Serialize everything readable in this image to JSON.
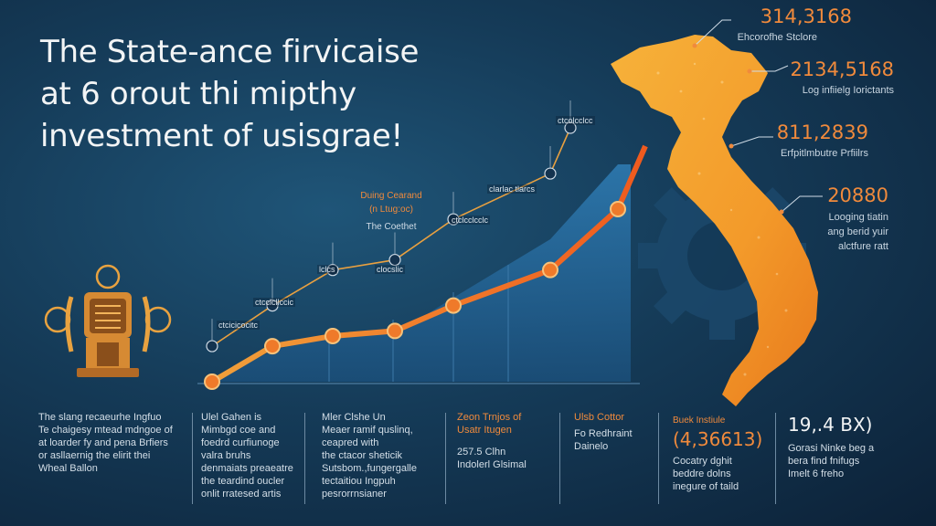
{
  "title": {
    "line1": "The State-ance firvicaise",
    "line2": "at 6 orout thi mipthy",
    "line3": "investment of usisgrae!"
  },
  "stats": [
    {
      "value": "314,3168",
      "label": "Ehcorofhe Stclore"
    },
    {
      "value": "2134,5168",
      "label": "Log infiielg Iorictants"
    },
    {
      "value": "811,2839",
      "label": "Erfpitlmbutre Prfiilrs"
    },
    {
      "value": "20880",
      "label1": "Looging tiatin",
      "label2": "ang berid yuir",
      "label3": "alctfure ratt"
    }
  ],
  "callout": {
    "line1": "Duing Cearand",
    "line2": "(n Ltug:oc)",
    "line3": "The Coethet"
  },
  "chart_annotations": [
    "ctcolcclcc",
    "clarlac tlarcs",
    "ctclcclcclc",
    "lclcs",
    "clocslic",
    "ctcclcllccic",
    "ctcicicocitc"
  ],
  "columns": [
    {
      "lines": [
        "The slang recaeurhe Ingfuo",
        "Te chaigesy mtead mdngoe of",
        "at loarder fy and pena Brfiers",
        "or asllaernig the elirit thei",
        "Wheal Ballon"
      ]
    },
    {
      "lines": [
        "Ulel Gahen is",
        "Mimbgd coe and",
        "foedrd curfiunoge",
        "valra bruhs",
        "denmaiats preaeatre",
        "the teardind oucler",
        "onlit rratesed artis"
      ]
    },
    {
      "lines": [
        "Mler Clshe Un",
        "Meaer ramif quslinq,",
        "ceapred with",
        "the ctacor sheticik",
        "Sutsbom.,fungergalle",
        "tectaitiou Ingpuh",
        "pesrorrnsianer"
      ]
    },
    {
      "heading1": "Zeon Trnjos of",
      "heading2": "Usatr Itugen",
      "lines": [
        "257.5 Clhn",
        "Indolerl Glsimal"
      ]
    },
    {
      "heading1": "Ulsb Cottor",
      "lines": [
        "Fo Redhraint",
        "Dainelo"
      ]
    },
    {
      "heading1": "Buek Instiule",
      "big": "(4,36613)",
      "lines": [
        "Cocatry dghit",
        "beddre dolns",
        "inegure of taild"
      ]
    },
    {
      "big": "19,.4 BX)",
      "lines": [
        "Gorasi Ninke beg a",
        "bera find fnifugs",
        "Imelt 6 freho"
      ]
    }
  ],
  "chart_data": {
    "type": "line",
    "series": [
      {
        "values": [
          0,
          14,
          18,
          20,
          30,
          44,
          68
        ]
      },
      {
        "values": [
          14,
          30,
          44,
          48,
          64,
          82,
          100
        ]
      }
    ]
  }
}
